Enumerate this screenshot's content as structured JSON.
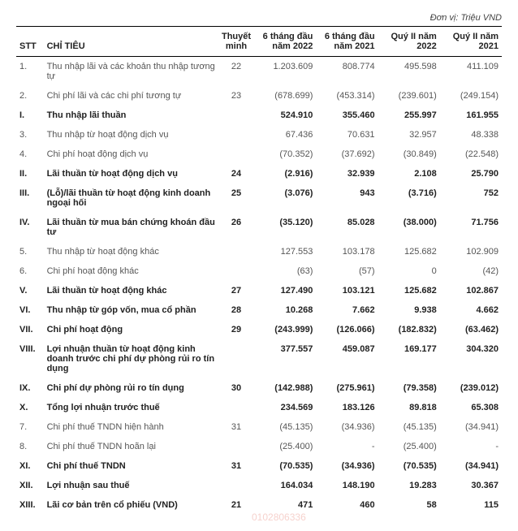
{
  "unit_label": "Đơn vị: Triệu VND",
  "columns": {
    "stt": "STT",
    "name": "CHỈ TIÊU",
    "tm": "Thuyết minh",
    "c1": "6 tháng đầu năm 2022",
    "c2": "6 tháng đầu năm 2021",
    "c3": "Quý II năm 2022",
    "c4": "Quý II năm 2021"
  },
  "rows": [
    {
      "stt": "1.",
      "name": "Thu nhập lãi và các khoản thu nhập tương tự",
      "tm": "22",
      "v1": "1.203.609",
      "v2": "808.774",
      "v3": "495.598",
      "v4": "411.109",
      "bold": false
    },
    {
      "stt": "2.",
      "name": "Chi phí lãi và các chi phí tương tự",
      "tm": "23",
      "v1": "(678.699)",
      "v2": "(453.314)",
      "v3": "(239.601)",
      "v4": "(249.154)",
      "bold": false
    },
    {
      "stt": "I.",
      "name": "Thu nhập lãi thuần",
      "tm": "",
      "v1": "524.910",
      "v2": "355.460",
      "v3": "255.997",
      "v4": "161.955",
      "bold": true
    },
    {
      "stt": "3.",
      "name": "Thu nhập từ hoạt động dịch vụ",
      "tm": "",
      "v1": "67.436",
      "v2": "70.631",
      "v3": "32.957",
      "v4": "48.338",
      "bold": false
    },
    {
      "stt": "4.",
      "name": "Chi phí hoạt động dịch vụ",
      "tm": "",
      "v1": "(70.352)",
      "v2": "(37.692)",
      "v3": "(30.849)",
      "v4": "(22.548)",
      "bold": false
    },
    {
      "stt": "II.",
      "name": "Lãi thuần từ hoạt động dịch vụ",
      "tm": "24",
      "v1": "(2.916)",
      "v2": "32.939",
      "v3": "2.108",
      "v4": "25.790",
      "bold": true
    },
    {
      "stt": "III.",
      "name": "(Lỗ)/lãi thuần từ hoạt động kinh doanh ngoại hối",
      "tm": "25",
      "v1": "(3.076)",
      "v2": "943",
      "v3": "(3.716)",
      "v4": "752",
      "bold": true
    },
    {
      "stt": "IV.",
      "name": "Lãi thuần từ mua bán chứng khoán đầu tư",
      "tm": "26",
      "v1": "(35.120)",
      "v2": "85.028",
      "v3": "(38.000)",
      "v4": "71.756",
      "bold": true
    },
    {
      "stt": "5.",
      "name": "Thu nhập từ hoạt động khác",
      "tm": "",
      "v1": "127.553",
      "v2": "103.178",
      "v3": "125.682",
      "v4": "102.909",
      "bold": false
    },
    {
      "stt": "6.",
      "name": "Chi phí hoạt động khác",
      "tm": "",
      "v1": "(63)",
      "v2": "(57)",
      "v3": "0",
      "v4": "(42)",
      "bold": false
    },
    {
      "stt": "V.",
      "name": "Lãi thuần từ hoạt động khác",
      "tm": "27",
      "v1": "127.490",
      "v2": "103.121",
      "v3": "125.682",
      "v4": "102.867",
      "bold": true
    },
    {
      "stt": "VI.",
      "name": "Thu nhập từ góp vốn, mua cổ phần",
      "tm": "28",
      "v1": "10.268",
      "v2": "7.662",
      "v3": "9.938",
      "v4": "4.662",
      "bold": true
    },
    {
      "stt": "VII.",
      "name": "Chi phí hoạt động",
      "tm": "29",
      "v1": "(243.999)",
      "v2": "(126.066)",
      "v3": "(182.832)",
      "v4": "(63.462)",
      "bold": true
    },
    {
      "stt": "VIII.",
      "name": "Lợi nhuận thuần từ hoạt động kinh doanh trước chi phí dự phòng rủi ro tín dụng",
      "tm": "",
      "v1": "377.557",
      "v2": "459.087",
      "v3": "169.177",
      "v4": "304.320",
      "bold": true
    },
    {
      "stt": "IX.",
      "name": "Chi phí dự phòng rủi ro tín dụng",
      "tm": "30",
      "v1": "(142.988)",
      "v2": "(275.961)",
      "v3": "(79.358)",
      "v4": "(239.012)",
      "bold": true
    },
    {
      "stt": "X.",
      "name": "Tổng lợi nhuận trước thuế",
      "tm": "",
      "v1": "234.569",
      "v2": "183.126",
      "v3": "89.818",
      "v4": "65.308",
      "bold": true
    },
    {
      "stt": "7.",
      "name": "Chi phí thuế TNDN hiện hành",
      "tm": "31",
      "v1": "(45.135)",
      "v2": "(34.936)",
      "v3": "(45.135)",
      "v4": "(34.941)",
      "bold": false
    },
    {
      "stt": "8.",
      "name": "Chi phí thuế TNDN hoãn lại",
      "tm": "",
      "v1": "(25.400)",
      "v2": "-",
      "v3": "(25.400)",
      "v4": "-",
      "bold": false
    },
    {
      "stt": "XI.",
      "name": "Chi phí thuế TNDN",
      "tm": "31",
      "v1": "(70.535)",
      "v2": "(34.936)",
      "v3": "(70.535)",
      "v4": "(34.941)",
      "bold": true
    },
    {
      "stt": "XII.",
      "name": "Lợi nhuận sau thuế",
      "tm": "",
      "v1": "164.034",
      "v2": "148.190",
      "v3": "19.283",
      "v4": "30.367",
      "bold": true
    },
    {
      "stt": "XIII.",
      "name": "Lãi cơ bản trên cổ phiếu (VND)",
      "tm": "21",
      "v1": "471",
      "v2": "460",
      "v3": "58",
      "v4": "115",
      "bold": true
    }
  ],
  "watermark_text": "0102806336"
}
